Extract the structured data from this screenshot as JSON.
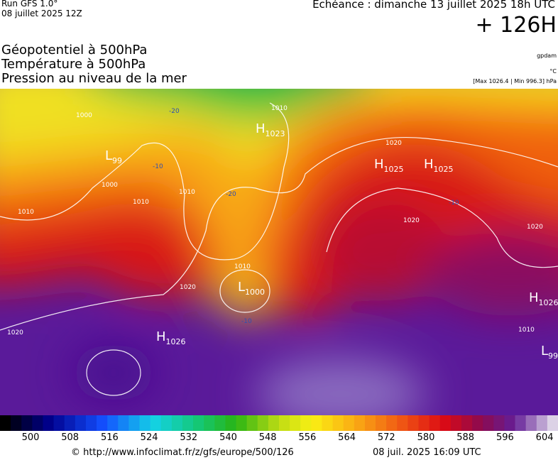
{
  "header": {
    "run": "Run GFS 1.0°",
    "date": "08 juillet 2025 12Z",
    "echeance": "Echéance : dimanche 13 juillet 2025 18h UTC",
    "lead": "+ 126H",
    "fields": [
      "Géopotentiel à 500hPa",
      "Température à 500hPa",
      "Pression au niveau de la mer"
    ],
    "units": [
      "gpdam",
      "°C",
      "[Max 1026.4 | Min 996.3] hPa"
    ]
  },
  "map": {
    "centers": [
      {
        "letter": "H",
        "value": "1023"
      },
      {
        "letter": "H",
        "value": "1025"
      },
      {
        "letter": "H",
        "value": "1025"
      },
      {
        "letter": "L",
        "value": "99"
      },
      {
        "letter": "L",
        "value": "1000"
      },
      {
        "letter": "H",
        "value": "1026"
      },
      {
        "letter": "H",
        "value": "1026"
      },
      {
        "letter": "L",
        "value": "99"
      }
    ],
    "isobar_labels": [
      "1010",
      "1000",
      "1000",
      "1010",
      "1010",
      "1020",
      "1020",
      "1020",
      "1010",
      "1020",
      "1020",
      "1010",
      "1010"
    ],
    "temperature_labels": [
      "-20",
      "-10",
      "-20",
      "-10",
      "-10"
    ]
  },
  "colorbar": {
    "ticks": [
      "500",
      "508",
      "516",
      "524",
      "532",
      "540",
      "548",
      "556",
      "564",
      "572",
      "580",
      "588",
      "596",
      "604"
    ]
  },
  "footer": {
    "source": "© http://www.infoclimat.fr/z/gfs/europe/500/126",
    "generated": "08 juil. 2025 16:09 UTC"
  }
}
